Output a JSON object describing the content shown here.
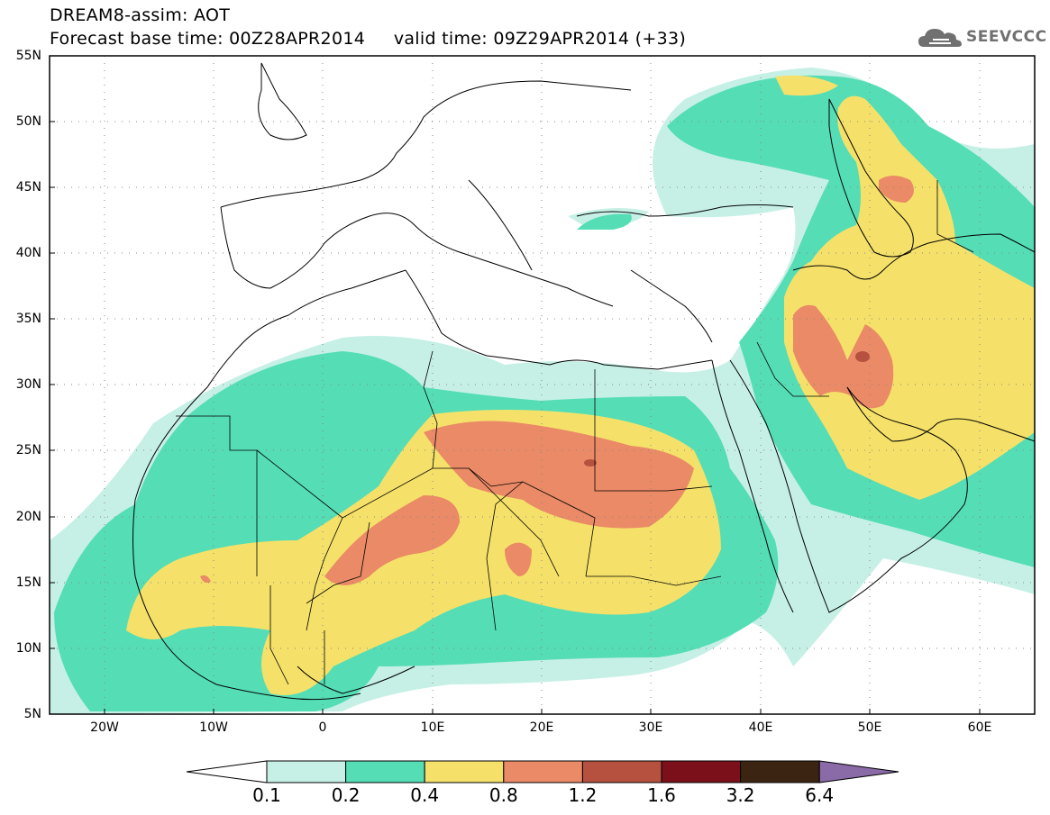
{
  "header": {
    "title_line1": "DREAM8-assim: AOT",
    "title_line2": "Forecast base time: 00Z28APR2014     valid time: 09Z29APR2014 (+33)",
    "logo_text": "SEEVCCC"
  },
  "map": {
    "lon_range": [
      -25,
      65
    ],
    "lat_range": [
      5,
      55
    ],
    "lat_labels": [
      "55N",
      "50N",
      "45N",
      "40N",
      "35N",
      "30N",
      "25N",
      "20N",
      "15N",
      "10N",
      "5N"
    ],
    "lon_labels": [
      "20W",
      "10W",
      "0",
      "10E",
      "20E",
      "30E",
      "40E",
      "50E",
      "60E"
    ],
    "grid": true
  },
  "colorbar": {
    "levels": [
      "0.1",
      "0.2",
      "0.4",
      "0.8",
      "1.2",
      "1.6",
      "3.2",
      "6.4"
    ],
    "colors": [
      "#c6f0e6",
      "#55ddb5",
      "#f5e16a",
      "#ea8a66",
      "#b5513e",
      "#7b0f1a",
      "#3b2412",
      "#8b6aa8"
    ]
  }
}
